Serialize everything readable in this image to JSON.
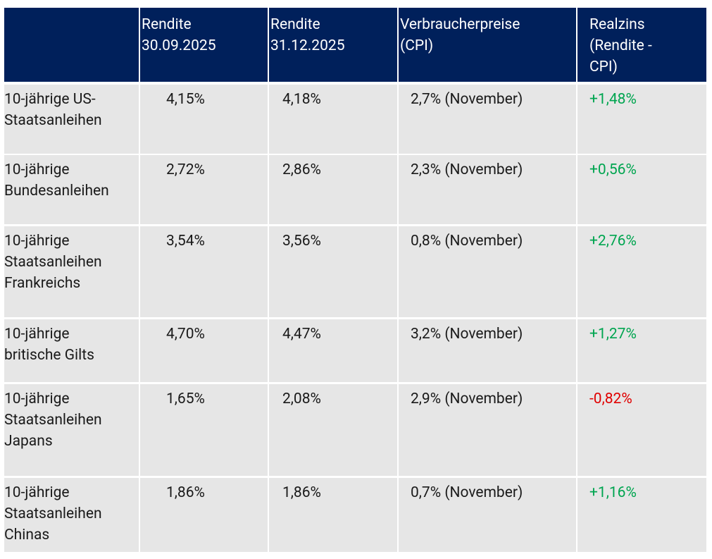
{
  "table": {
    "header": [
      "",
      "Rendite\n30.09.2025",
      "Rendite\n31.12.2025",
      "Verbraucherpreise\n(CPI)",
      "Realzins\n(Rendite -\nCPI)"
    ],
    "rows": [
      [
        "10-jährige US-\nStaatsanleihen",
        "4,15%",
        "4,18%",
        "2,7% (November)",
        "+1,48%"
      ],
      [
        "10-jährige\nBundesanleihen",
        "2,72%",
        "2,86%",
        "2,3% (November)",
        "+0,56%"
      ],
      [
        "10-jährige\nStaatsanleihen\nFrankreichs",
        "3,54%",
        "3,56%",
        "0,8% (November)",
        "+2,76%"
      ],
      [
        "10-jährige\nbritische Gilts",
        "4,70%",
        "4,47%",
        "3,2% (November)",
        "+1,27%"
      ],
      [
        "10-jährige\nStaatsanleihen\nJapans",
        "1,65%",
        "2,08%",
        "2,9% (November)",
        "-0,82%"
      ],
      [
        "10-jährige\nStaatsanleihen\nChinas",
        "1,86%",
        "1,86%",
        "0,7% (November)",
        "+1,16%"
      ]
    ]
  }
}
